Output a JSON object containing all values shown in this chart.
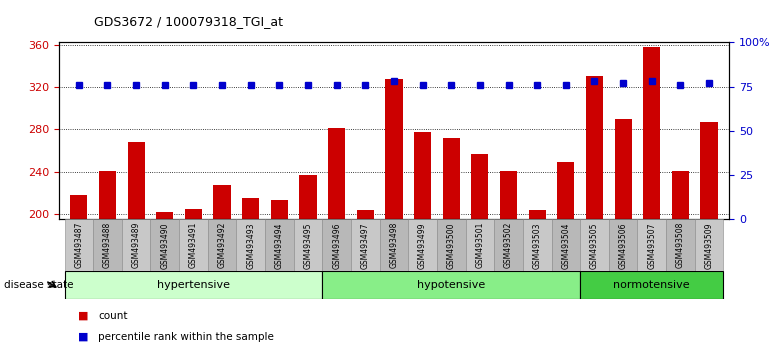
{
  "title": "GDS3672 / 100079318_TGI_at",
  "samples": [
    "GSM493487",
    "GSM493488",
    "GSM493489",
    "GSM493490",
    "GSM493491",
    "GSM493492",
    "GSM493493",
    "GSM493494",
    "GSM493495",
    "GSM493496",
    "GSM493497",
    "GSM493498",
    "GSM493499",
    "GSM493500",
    "GSM493501",
    "GSM493502",
    "GSM493503",
    "GSM493504",
    "GSM493505",
    "GSM493506",
    "GSM493507",
    "GSM493508",
    "GSM493509"
  ],
  "counts": [
    218,
    241,
    268,
    202,
    205,
    228,
    215,
    213,
    237,
    281,
    204,
    328,
    278,
    272,
    257,
    241,
    204,
    249,
    330,
    290,
    358,
    241,
    287
  ],
  "percentile_ranks": [
    76,
    76,
    76,
    76,
    76,
    76,
    76,
    76,
    76,
    76,
    76,
    78,
    76,
    76,
    76,
    76,
    76,
    76,
    78,
    77,
    78,
    76,
    77
  ],
  "groups": [
    {
      "label": "hypertensive",
      "start": 0,
      "end": 9,
      "color": "#ccffcc"
    },
    {
      "label": "hypotensive",
      "start": 9,
      "end": 18,
      "color": "#99ee99"
    },
    {
      "label": "normotensive",
      "start": 18,
      "end": 23,
      "color": "#55dd55"
    }
  ],
  "ylim_left": [
    195,
    362
  ],
  "ylim_right": [
    0,
    100
  ],
  "yticks_left": [
    200,
    240,
    280,
    320,
    360
  ],
  "yticks_right": [
    0,
    25,
    50,
    75,
    100
  ],
  "yticklabels_right": [
    "0",
    "25",
    "50",
    "75",
    "100%"
  ],
  "bar_color": "#cc0000",
  "dot_color": "#0000cc",
  "background_color": "#ffffff",
  "grid_color": "#000000",
  "legend_items": [
    "count",
    "percentile rank within the sample"
  ],
  "legend_colors": [
    "#cc0000",
    "#0000cc"
  ]
}
